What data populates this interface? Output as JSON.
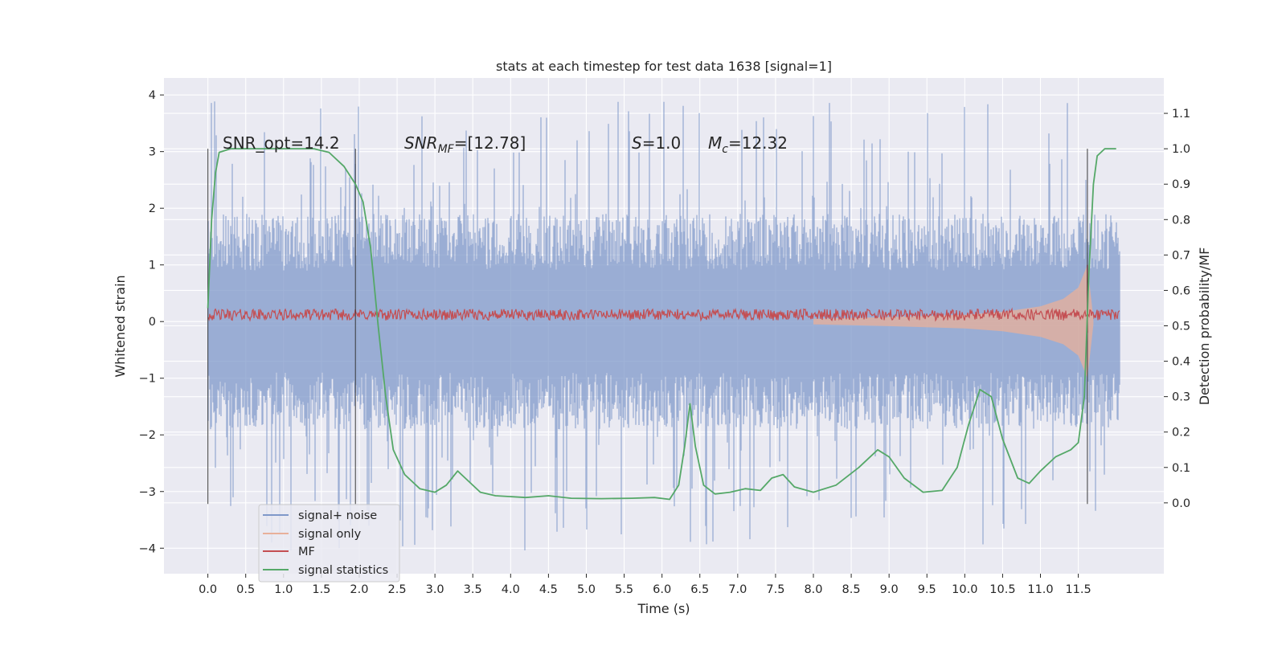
{
  "chart_data": {
    "type": "line",
    "title": "stats at each timestep for test data 1638 [signal=1]",
    "xlabel": "Time (s)",
    "ylabel_left": "Whitened strain",
    "ylabel_right": "Detection probability/MF",
    "xlim": [
      -0.58,
      12.63
    ],
    "ylim_left": [
      -4.45,
      4.3
    ],
    "ylim_right": [
      -0.2,
      1.2
    ],
    "x_ticks": [
      "0.0",
      "0.5",
      "1.0",
      "1.5",
      "2.0",
      "2.5",
      "3.0",
      "3.5",
      "4.0",
      "4.5",
      "5.0",
      "5.5",
      "6.0",
      "6.5",
      "7.0",
      "7.5",
      "8.0",
      "8.5",
      "9.0",
      "9.5",
      "10.0",
      "10.5",
      "11.0",
      "11.5"
    ],
    "y_ticks_left": [
      "4",
      "3",
      "2",
      "1",
      "0",
      "−1",
      "−2",
      "−3",
      "−4"
    ],
    "y_ticks_right": [
      "1.1",
      "1.0",
      "0.9",
      "0.8",
      "0.7",
      "0.6",
      "0.5",
      "0.4",
      "0.3",
      "0.2",
      "0.1",
      "0.0"
    ],
    "grid": true,
    "legend_position": "lower-left",
    "annotations": {
      "snr_opt": "SNR_opt=14.2",
      "snr_mf_italic": "SNR",
      "snr_mf_sub": "MF",
      "snr_mf_value": "=[12.78]",
      "s_italic": "S",
      "s_value": "=1.0",
      "mc_italic": "M",
      "mc_sub": "c",
      "mc_value": "=12.32"
    },
    "vertical_markers_s": [
      0.0,
      1.95,
      11.62
    ],
    "series": [
      {
        "name": "signal+ noise",
        "color": "#7f98c9",
        "axis": "left",
        "kind": "noise-band",
        "x_range": [
          0.0,
          12.05
        ],
        "typical_abs_amplitude": 1.8,
        "max_value": 3.9,
        "min_value": -4.1
      },
      {
        "name": "signal only",
        "color": "#e8b09a",
        "axis": "left",
        "kind": "chirp-envelope",
        "envelope_points": [
          [
            8.0,
            0.05
          ],
          [
            9.0,
            0.08
          ],
          [
            10.0,
            0.12
          ],
          [
            10.5,
            0.17
          ],
          [
            11.0,
            0.27
          ],
          [
            11.3,
            0.4
          ],
          [
            11.5,
            0.6
          ],
          [
            11.62,
            1.0
          ],
          [
            11.7,
            0.05
          ]
        ]
      },
      {
        "name": "MF",
        "color": "#c44e52",
        "axis": "left",
        "kind": "noisy-baseline",
        "mean_value": 0.12,
        "spread": 0.1,
        "spike": [
          11.62,
          1.0
        ]
      },
      {
        "name": "signal statistics",
        "color": "#55a868",
        "axis": "right",
        "kind": "line",
        "points": [
          [
            0.0,
            0.55
          ],
          [
            0.05,
            0.8
          ],
          [
            0.1,
            0.93
          ],
          [
            0.15,
            0.99
          ],
          [
            0.3,
            1.0
          ],
          [
            0.5,
            1.0
          ],
          [
            1.0,
            1.0
          ],
          [
            1.4,
            1.0
          ],
          [
            1.6,
            0.99
          ],
          [
            1.8,
            0.95
          ],
          [
            1.95,
            0.9
          ],
          [
            2.05,
            0.85
          ],
          [
            2.15,
            0.72
          ],
          [
            2.25,
            0.5
          ],
          [
            2.35,
            0.3
          ],
          [
            2.45,
            0.15
          ],
          [
            2.6,
            0.08
          ],
          [
            2.8,
            0.04
          ],
          [
            3.0,
            0.03
          ],
          [
            3.15,
            0.05
          ],
          [
            3.3,
            0.09
          ],
          [
            3.4,
            0.07
          ],
          [
            3.6,
            0.03
          ],
          [
            3.8,
            0.02
          ],
          [
            4.2,
            0.015
          ],
          [
            4.5,
            0.02
          ],
          [
            4.8,
            0.013
          ],
          [
            5.2,
            0.012
          ],
          [
            5.6,
            0.013
          ],
          [
            5.9,
            0.015
          ],
          [
            6.1,
            0.01
          ],
          [
            6.22,
            0.05
          ],
          [
            6.3,
            0.16
          ],
          [
            6.37,
            0.28
          ],
          [
            6.44,
            0.16
          ],
          [
            6.55,
            0.05
          ],
          [
            6.7,
            0.025
          ],
          [
            6.9,
            0.03
          ],
          [
            7.1,
            0.04
          ],
          [
            7.3,
            0.035
          ],
          [
            7.45,
            0.07
          ],
          [
            7.6,
            0.08
          ],
          [
            7.75,
            0.045
          ],
          [
            8.0,
            0.03
          ],
          [
            8.3,
            0.05
          ],
          [
            8.6,
            0.1
          ],
          [
            8.85,
            0.15
          ],
          [
            9.0,
            0.13
          ],
          [
            9.2,
            0.07
          ],
          [
            9.45,
            0.03
          ],
          [
            9.7,
            0.035
          ],
          [
            9.9,
            0.1
          ],
          [
            10.05,
            0.22
          ],
          [
            10.2,
            0.32
          ],
          [
            10.35,
            0.3
          ],
          [
            10.5,
            0.18
          ],
          [
            10.7,
            0.07
          ],
          [
            10.85,
            0.055
          ],
          [
            11.0,
            0.09
          ],
          [
            11.2,
            0.13
          ],
          [
            11.4,
            0.15
          ],
          [
            11.5,
            0.17
          ],
          [
            11.58,
            0.3
          ],
          [
            11.64,
            0.65
          ],
          [
            11.7,
            0.9
          ],
          [
            11.75,
            0.98
          ],
          [
            11.85,
            1.0
          ],
          [
            12.0,
            1.0
          ]
        ]
      }
    ]
  }
}
